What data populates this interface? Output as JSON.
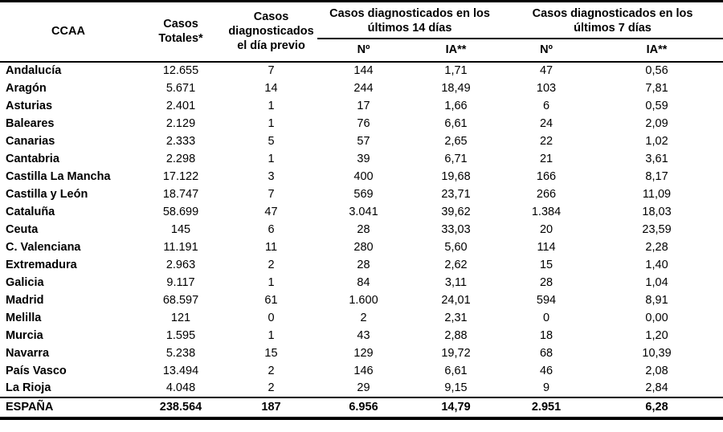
{
  "page": {
    "background_color": "#ffffff",
    "text_color": "#000000",
    "border_color": "#000000"
  },
  "table": {
    "headers": {
      "ccaa": "CCAA",
      "totales": "Casos\nTotales*",
      "dia_previo": "Casos\ndiagnosticados\nel día previo",
      "group_14": "Casos diagnosticados en los\núltimos 14 días",
      "group_7": "Casos diagnosticados en los\núltimos 7 días",
      "n": "Nº",
      "ia": "IA**"
    },
    "rows": [
      {
        "ccaa": "Andalucía",
        "values": [
          "12.655",
          "7",
          "144",
          "1,71",
          "47",
          "0,56"
        ]
      },
      {
        "ccaa": "Aragón",
        "values": [
          "5.671",
          "14",
          "244",
          "18,49",
          "103",
          "7,81"
        ]
      },
      {
        "ccaa": "Asturias",
        "values": [
          "2.401",
          "1",
          "17",
          "1,66",
          "6",
          "0,59"
        ]
      },
      {
        "ccaa": "Baleares",
        "values": [
          "2.129",
          "1",
          "76",
          "6,61",
          "24",
          "2,09"
        ]
      },
      {
        "ccaa": "Canarias",
        "values": [
          "2.333",
          "5",
          "57",
          "2,65",
          "22",
          "1,02"
        ]
      },
      {
        "ccaa": "Cantabria",
        "values": [
          "2.298",
          "1",
          "39",
          "6,71",
          "21",
          "3,61"
        ]
      },
      {
        "ccaa": "Castilla La Mancha",
        "values": [
          "17.122",
          "3",
          "400",
          "19,68",
          "166",
          "8,17"
        ]
      },
      {
        "ccaa": "Castilla y León",
        "values": [
          "18.747",
          "7",
          "569",
          "23,71",
          "266",
          "11,09"
        ]
      },
      {
        "ccaa": "Cataluña",
        "values": [
          "58.699",
          "47",
          "3.041",
          "39,62",
          "1.384",
          "18,03"
        ]
      },
      {
        "ccaa": "Ceuta",
        "values": [
          "145",
          "6",
          "28",
          "33,03",
          "20",
          "23,59"
        ]
      },
      {
        "ccaa": "C. Valenciana",
        "values": [
          "11.191",
          "11",
          "280",
          "5,60",
          "114",
          "2,28"
        ]
      },
      {
        "ccaa": "Extremadura",
        "values": [
          "2.963",
          "2",
          "28",
          "2,62",
          "15",
          "1,40"
        ]
      },
      {
        "ccaa": "Galicia",
        "values": [
          "9.117",
          "1",
          "84",
          "3,11",
          "28",
          "1,04"
        ]
      },
      {
        "ccaa": "Madrid",
        "values": [
          "68.597",
          "61",
          "1.600",
          "24,01",
          "594",
          "8,91"
        ]
      },
      {
        "ccaa": "Melilla",
        "values": [
          "121",
          "0",
          "2",
          "2,31",
          "0",
          "0,00"
        ]
      },
      {
        "ccaa": "Murcia",
        "values": [
          "1.595",
          "1",
          "43",
          "2,88",
          "18",
          "1,20"
        ]
      },
      {
        "ccaa": "Navarra",
        "values": [
          "5.238",
          "15",
          "129",
          "19,72",
          "68",
          "10,39"
        ]
      },
      {
        "ccaa": "País Vasco",
        "values": [
          "13.494",
          "2",
          "146",
          "6,61",
          "46",
          "2,08"
        ]
      },
      {
        "ccaa": "La Rioja",
        "values": [
          "4.048",
          "2",
          "29",
          "9,15",
          "9",
          "2,84"
        ]
      }
    ],
    "total_row": {
      "ccaa": "ESPAÑA",
      "values": [
        "238.564",
        "187",
        "6.956",
        "14,79",
        "2.951",
        "6,28"
      ]
    }
  }
}
